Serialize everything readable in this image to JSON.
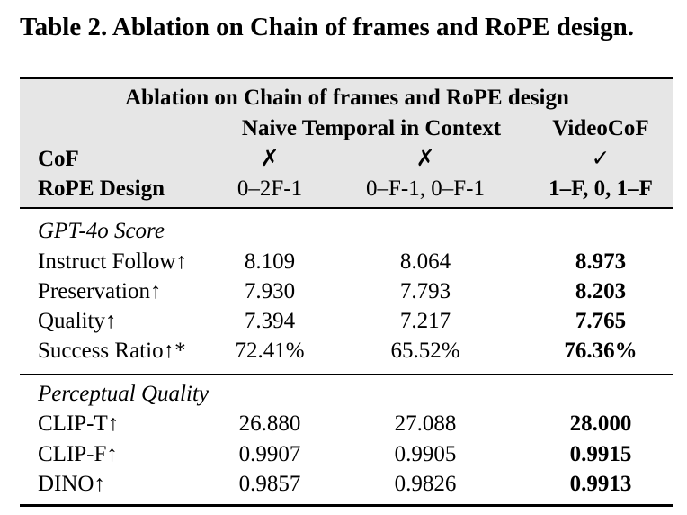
{
  "caption": "Table 2. Ablation on Chain of frames and RoPE design.",
  "table": {
    "super_header": "Ablation on Chain of frames and RoPE design",
    "col_groups": [
      "Naive Temporal in Context",
      "VideoCoF"
    ],
    "cof": {
      "label": "CoF",
      "values": [
        "✗",
        "✗",
        "✓"
      ]
    },
    "rope": {
      "label": "RoPE Design",
      "values": [
        "0–2F-1",
        "0–F-1, 0–F-1",
        "1–F, 0, 1–F"
      ]
    },
    "sections": [
      {
        "title": "GPT-4o Score",
        "rows": [
          {
            "label": "Instruct Follow↑",
            "values": [
              "8.109",
              "8.064",
              "8.973"
            ]
          },
          {
            "label": "Preservation↑",
            "values": [
              "7.930",
              "7.793",
              "8.203"
            ]
          },
          {
            "label": "Quality↑",
            "values": [
              "7.394",
              "7.217",
              "7.765"
            ]
          },
          {
            "label": "Success Ratio↑*",
            "values": [
              "72.41%",
              "65.52%",
              "76.36%"
            ]
          }
        ]
      },
      {
        "title": "Perceptual Quality",
        "rows": [
          {
            "label": "CLIP-T↑",
            "values": [
              "26.880",
              "27.088",
              "28.000"
            ]
          },
          {
            "label": "CLIP-F↑",
            "values": [
              "0.9907",
              "0.9905",
              "0.9915"
            ]
          },
          {
            "label": "DINO↑",
            "values": [
              "0.9857",
              "0.9826",
              "0.9913"
            ]
          }
        ]
      }
    ]
  }
}
